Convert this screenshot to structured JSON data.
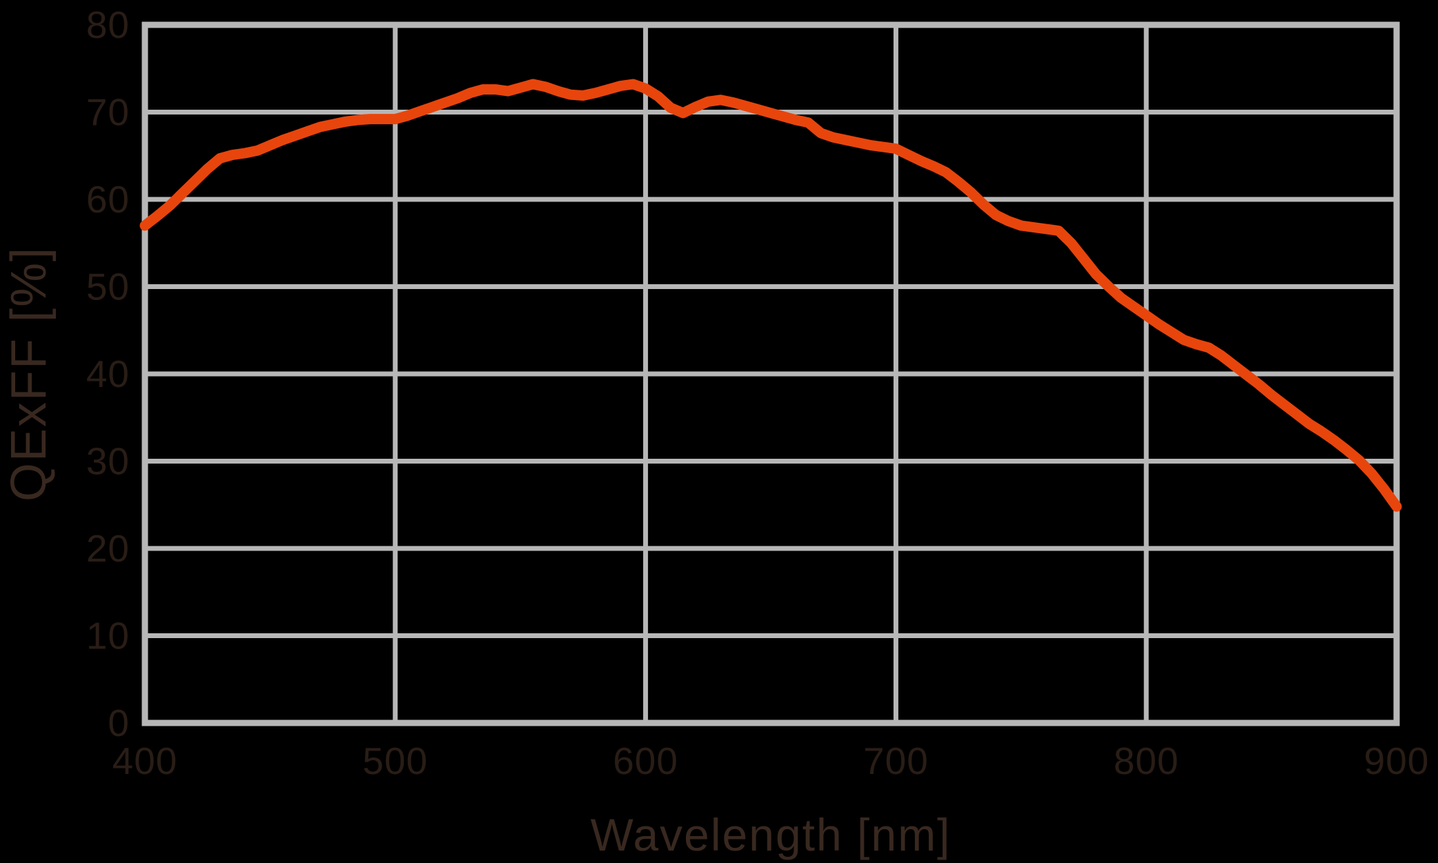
{
  "colors": {
    "background": "#000000",
    "grid": "#B7B7B7",
    "curve": "#E8450C",
    "tick_text": "#291D16",
    "title_text": "#38281F"
  },
  "chart_data": {
    "type": "line",
    "title": "",
    "xlabel": "Wavelength [nm]",
    "ylabel": "QExFF [%]",
    "xlim": [
      400,
      900
    ],
    "ylim": [
      0,
      80
    ],
    "xticks": [
      400,
      500,
      600,
      700,
      800,
      900
    ],
    "yticks": [
      0,
      10,
      20,
      30,
      40,
      50,
      60,
      70,
      80
    ],
    "grid": true,
    "legend": false,
    "series": [
      {
        "name": "QExFF",
        "color": "#E8450C",
        "x": [
          400,
          405,
          410,
          415,
          420,
          425,
          430,
          435,
          440,
          445,
          450,
          455,
          460,
          465,
          470,
          475,
          480,
          485,
          490,
          495,
          500,
          505,
          510,
          515,
          520,
          525,
          530,
          535,
          540,
          545,
          550,
          555,
          560,
          565,
          570,
          575,
          580,
          585,
          590,
          595,
          600,
          605,
          610,
          615,
          620,
          625,
          630,
          635,
          640,
          645,
          650,
          655,
          660,
          665,
          670,
          675,
          680,
          685,
          690,
          695,
          700,
          705,
          710,
          715,
          720,
          725,
          730,
          735,
          740,
          745,
          750,
          755,
          760,
          765,
          770,
          775,
          780,
          785,
          790,
          795,
          800,
          805,
          810,
          815,
          820,
          825,
          830,
          835,
          840,
          845,
          850,
          855,
          860,
          865,
          870,
          875,
          880,
          885,
          890,
          895,
          900
        ],
        "values": [
          57.0,
          58.1,
          59.3,
          60.7,
          62.1,
          63.5,
          64.7,
          65.1,
          65.3,
          65.6,
          66.2,
          66.8,
          67.3,
          67.8,
          68.3,
          68.6,
          68.9,
          69.1,
          69.2,
          69.2,
          69.2,
          69.6,
          70.1,
          70.6,
          71.1,
          71.6,
          72.2,
          72.6,
          72.6,
          72.4,
          72.8,
          73.2,
          72.9,
          72.4,
          72.0,
          71.9,
          72.2,
          72.6,
          73.0,
          73.2,
          72.7,
          71.8,
          70.5,
          69.9,
          70.6,
          71.2,
          71.4,
          71.1,
          70.7,
          70.3,
          69.9,
          69.5,
          69.1,
          68.8,
          67.6,
          67.1,
          66.8,
          66.5,
          66.2,
          66.0,
          65.8,
          65.1,
          64.4,
          63.8,
          63.1,
          62.0,
          60.8,
          59.4,
          58.2,
          57.5,
          57.0,
          56.8,
          56.6,
          56.4,
          55.0,
          53.2,
          51.4,
          50.0,
          48.7,
          47.7,
          46.7,
          45.7,
          44.8,
          43.9,
          43.4,
          43.0,
          42.1,
          41.0,
          39.9,
          38.8,
          37.6,
          36.5,
          35.4,
          34.3,
          33.4,
          32.4,
          31.3,
          30.1,
          28.6,
          26.8,
          24.8
        ]
      }
    ]
  }
}
